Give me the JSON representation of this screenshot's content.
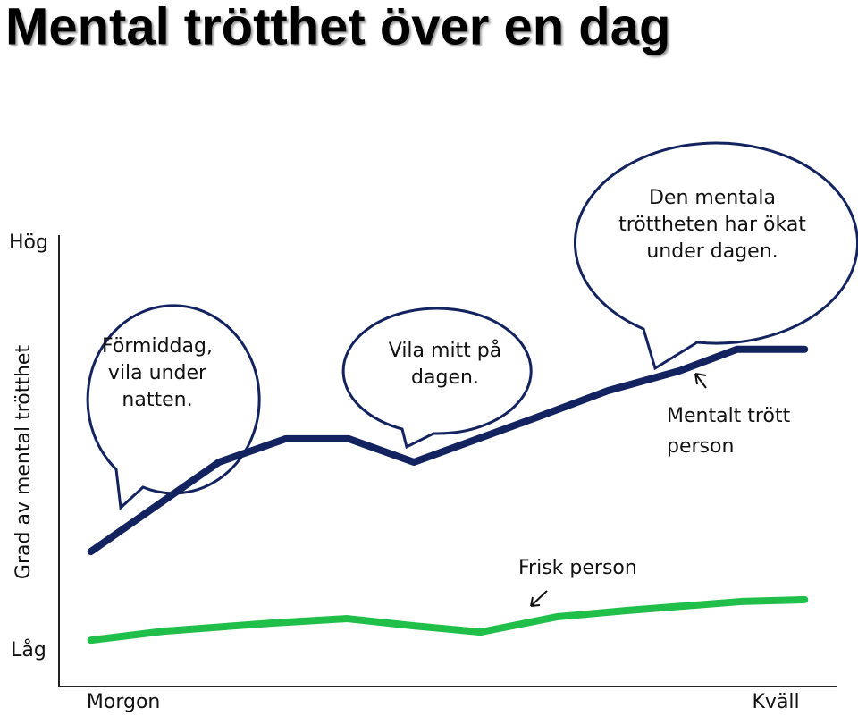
{
  "chart_data": {
    "type": "line",
    "title": "Mental trötthet över en dag",
    "y_label": "Grad av mental trötthet",
    "xlim": [
      0,
      100
    ],
    "ylim": [
      0,
      100
    ],
    "xticks": [
      {
        "value": 8.3,
        "label": "Morgon"
      },
      {
        "value": 92.3,
        "label": "Kväll"
      }
    ],
    "yticks": [
      {
        "value": 8,
        "label": "Låg"
      },
      {
        "value": 98.6,
        "label": "Hög"
      }
    ],
    "series": [
      {
        "name": "Mentalt trött person",
        "color": "#13235f",
        "x": [
          4.1,
          20.6,
          29.2,
          37.3,
          45.7,
          61.4,
          70.7,
          79.9,
          87.3,
          96.0
        ],
        "values": [
          30.0,
          49.9,
          55.1,
          55.1,
          49.9,
          59.8,
          65.8,
          70.2,
          75.0,
          75.0
        ]
      },
      {
        "name": "Frisk person",
        "color": "#1fbf4a",
        "x": [
          4.1,
          13.5,
          27.3,
          37.1,
          45.7,
          54.3,
          64.1,
          73.1,
          87.9,
          96.0
        ],
        "values": [
          10.3,
          12.3,
          14.1,
          15.1,
          13.5,
          12.1,
          15.5,
          16.9,
          18.9,
          19.3
        ]
      }
    ],
    "annotations": [
      {
        "lines": [
          "Förmiddag,",
          "vila under",
          "natten."
        ]
      },
      {
        "lines": [
          "Vila mitt på",
          "dagen."
        ]
      },
      {
        "lines": [
          "Den mentala",
          "tröttheten har ökat",
          "under dagen."
        ]
      }
    ]
  }
}
